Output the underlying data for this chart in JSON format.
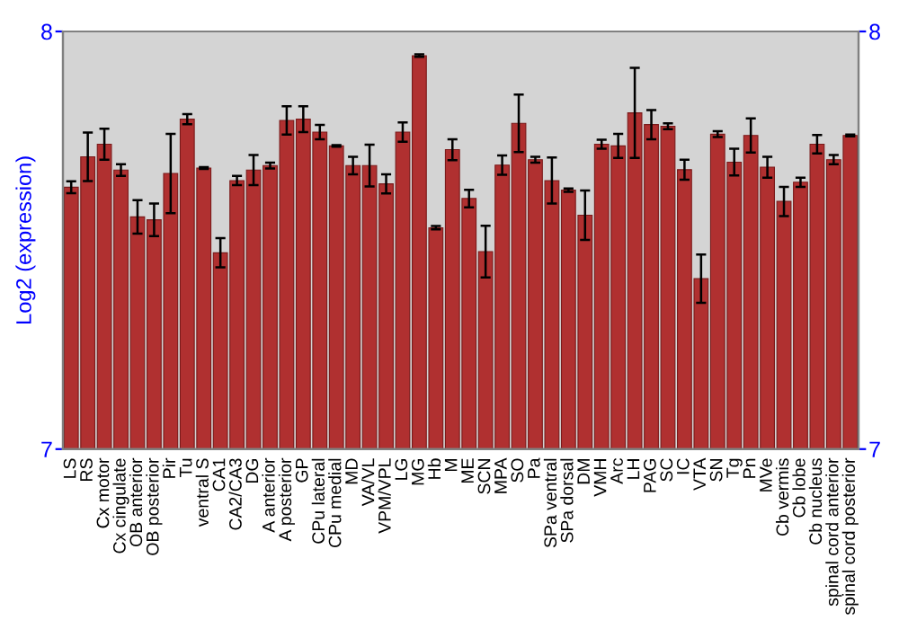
{
  "chart_data": {
    "type": "bar",
    "ylabel": "Log2 (expression)",
    "categories": [
      "LS",
      "RS",
      "Cx motor",
      "Cx cingulate",
      "OB anterior",
      "OB posterior",
      "Pir",
      "Tu",
      "ventral S",
      "CA1",
      "CA2/CA3",
      "DG",
      "A anterior",
      "A posterior",
      "GP",
      "CPu lateral",
      "CPu medial",
      "MD",
      "VA/VL",
      "VPM/VPL",
      "LG",
      "MG",
      "Hb",
      "M",
      "ME",
      "SCN",
      "MPA",
      "SO",
      "Pa",
      "SPa ventral",
      "SPa dorsal",
      "DM",
      "VMH",
      "Arc",
      "LH",
      "PAG",
      "SC",
      "IC",
      "VTA",
      "SN",
      "Tg",
      "Pn",
      "MVe",
      "Cb vermis",
      "Cb lobe",
      "Cb nucleus",
      "spinal cord anterior",
      "spinal cord posterior"
    ],
    "values": [
      7.627,
      7.7,
      7.73,
      7.668,
      7.556,
      7.549,
      7.66,
      7.79,
      7.673,
      7.47,
      7.643,
      7.668,
      7.679,
      7.787,
      7.79,
      7.759,
      7.726,
      7.679,
      7.679,
      7.635,
      7.759,
      7.942,
      7.53,
      7.717,
      7.6,
      7.473,
      7.68,
      7.78,
      7.693,
      7.643,
      7.62,
      7.56,
      7.73,
      7.726,
      7.805,
      7.777,
      7.773,
      7.669,
      7.408,
      7.754,
      7.687,
      7.751,
      7.675,
      7.593,
      7.639,
      7.73,
      7.693,
      7.751
    ],
    "errors": [
      0.014,
      0.058,
      0.037,
      0.014,
      0.04,
      0.039,
      0.095,
      0.012,
      0.002,
      0.035,
      0.011,
      0.036,
      0.007,
      0.034,
      0.031,
      0.017,
      0.002,
      0.021,
      0.05,
      0.023,
      0.023,
      0.003,
      0.004,
      0.025,
      0.021,
      0.062,
      0.023,
      0.069,
      0.007,
      0.055,
      0.004,
      0.059,
      0.011,
      0.029,
      0.108,
      0.035,
      0.007,
      0.024,
      0.058,
      0.007,
      0.032,
      0.041,
      0.025,
      0.035,
      0.011,
      0.022,
      0.011,
      0.002
    ],
    "color": "#b03030",
    "ylim": [
      7,
      8
    ],
    "yticks": [
      7,
      8
    ],
    "y2lim": [
      7,
      8
    ],
    "y2ticks": [
      7,
      8
    ],
    "grid": false,
    "legend": false
  }
}
